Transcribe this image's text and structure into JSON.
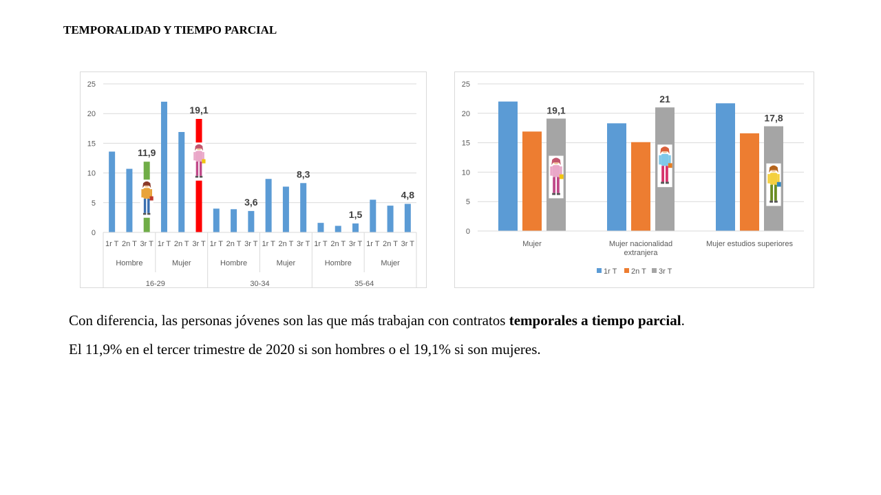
{
  "slide": {
    "title": "TEMPORALIDAD Y TIEMPO PARCIAL",
    "paragraph1": {
      "prefix": "Con diferencia, las personas jóvenes son las que más trabajan con contratos ",
      "bold": "temporales a tiempo parcial",
      "suffix": "."
    },
    "paragraph2": "El 11,9% en el tercer trimestre de 2020 si son hombres o el 19,1% si son mujeres."
  },
  "colors": {
    "blue": "#5b9bd5",
    "orange": "#ed7d31",
    "gray": "#a5a5a5",
    "green": "#70ad47",
    "red": "#ff0000",
    "grid": "#d9d9d9",
    "axis_text": "#595959"
  },
  "chart_data": [
    {
      "type": "bar",
      "ylim": [
        0,
        25
      ],
      "yticks": [
        0,
        5,
        10,
        15,
        20,
        25
      ],
      "categories": [
        "1r T",
        "2n T",
        "3r T",
        "1r T",
        "2n T",
        "3r T",
        "1r T",
        "2n T",
        "3r T",
        "1r T",
        "2n T",
        "3r T",
        "1r T",
        "2n T",
        "3r T",
        "1r T",
        "2n T",
        "3r T"
      ],
      "values": [
        13.6,
        10.7,
        11.9,
        22.0,
        16.9,
        19.1,
        4.0,
        3.9,
        3.6,
        9.0,
        7.7,
        8.3,
        1.6,
        1.1,
        1.5,
        5.5,
        4.5,
        4.8
      ],
      "bar_colors": [
        "#5b9bd5",
        "#5b9bd5",
        "#70ad47",
        "#5b9bd5",
        "#5b9bd5",
        "#ff0000",
        "#5b9bd5",
        "#5b9bd5",
        "#5b9bd5",
        "#5b9bd5",
        "#5b9bd5",
        "#5b9bd5",
        "#5b9bd5",
        "#5b9bd5",
        "#5b9bd5",
        "#5b9bd5",
        "#5b9bd5",
        "#5b9bd5"
      ],
      "data_labels": [
        {
          "index": 2,
          "text": "11,9"
        },
        {
          "index": 5,
          "text": "19,1"
        },
        {
          "index": 8,
          "text": "3,6"
        },
        {
          "index": 11,
          "text": "8,3"
        },
        {
          "index": 14,
          "text": "1,5"
        },
        {
          "index": 17,
          "text": "4,8"
        }
      ],
      "sex_groups": [
        "Hombre",
        "Mujer",
        "Hombre",
        "Mujer",
        "Hombre",
        "Mujer"
      ],
      "age_groups": [
        "16-29",
        "30-34",
        "35-64"
      ],
      "icons": [
        {
          "index": 2,
          "name": "young-man-figure-icon"
        },
        {
          "index": 5,
          "name": "young-woman-figure-icon"
        }
      ]
    },
    {
      "type": "bar",
      "ylim": [
        0,
        25
      ],
      "yticks": [
        0,
        5,
        10,
        15,
        20,
        25
      ],
      "categories": [
        "Mujer",
        "Mujer nacionalidad extranjera",
        "Mujer estudios superiores"
      ],
      "category_lines": [
        [
          "Mujer"
        ],
        [
          "Mujer nacionalidad",
          "extranjera"
        ],
        [
          "Mujer estudios superiores"
        ]
      ],
      "series": [
        {
          "name": "1r T",
          "values": [
            22.0,
            18.3,
            21.7
          ]
        },
        {
          "name": "2n T",
          "values": [
            16.9,
            15.1,
            16.6
          ]
        },
        {
          "name": "3r T",
          "values": [
            19.1,
            21.0,
            17.8
          ]
        }
      ],
      "series_colors": [
        "#5b9bd5",
        "#ed7d31",
        "#a5a5a5"
      ],
      "data_labels": [
        "19,1",
        "21",
        "17,8"
      ],
      "legend": "bottom",
      "icons": [
        "woman-figure-icon",
        "foreign-woman-figure-icon",
        "graduate-woman-figure-icon"
      ]
    }
  ]
}
